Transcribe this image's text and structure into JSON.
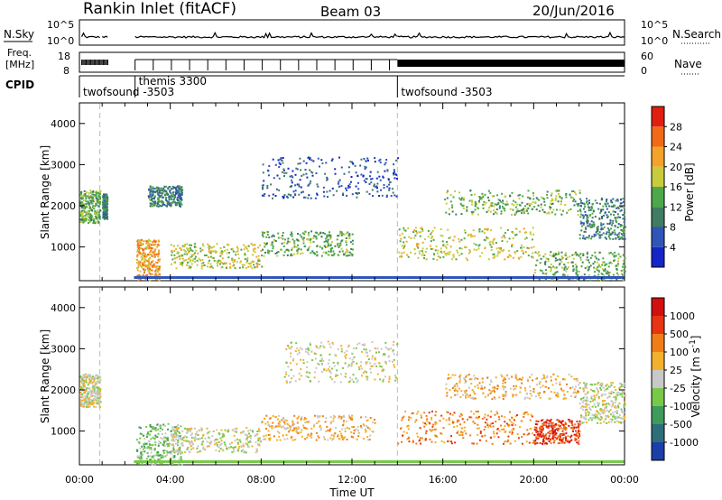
{
  "header": {
    "station": "Rankin Inlet (fitACF)",
    "beam": "Beam 03",
    "date": "20/Jun/2016"
  },
  "noise_panel": {
    "left_label": "N.Sky",
    "left_ticks": [
      "10^5",
      "10^0"
    ],
    "right_label": "N.Search",
    "right_ticks": [
      "10^5",
      "10^0"
    ]
  },
  "freq_panel": {
    "left_label_line1": "Freq.",
    "left_label_line2": "[MHz]",
    "left_ticks": [
      "18",
      "8"
    ],
    "right_label": "Nave",
    "right_ticks": [
      "60",
      "0"
    ]
  },
  "cpid": {
    "label": "CPID",
    "segments": [
      {
        "start_hour": 0.0,
        "name": "twofsound -3503",
        "row": 2
      },
      {
        "start_hour": 2.45,
        "name": "themis 3300",
        "row": 1
      },
      {
        "start_hour": 14.0,
        "name": "twofsound -3503",
        "row": 2
      }
    ]
  },
  "chart_data": [
    {
      "type": "heatmap",
      "title": "Power",
      "ylabel": "Slant Range [km]",
      "xlabel": "Time UT",
      "xlim": [
        0,
        24
      ],
      "ylim": [
        180,
        4500
      ],
      "y_ticks": [
        "1000",
        "2000",
        "3000",
        "4000"
      ],
      "x_ticks": [
        "00:00",
        "04:00",
        "08:00",
        "12:00",
        "16:00",
        "20:00",
        "00:00"
      ],
      "colorbar": {
        "label": "Power [dB]",
        "ticks": [
          "4",
          "8",
          "12",
          "16",
          "20",
          "24",
          "28"
        ],
        "colors": [
          "#1426c8",
          "#2f55b6",
          "#3f7c63",
          "#4ea84a",
          "#c7cb3c",
          "#f3a32a",
          "#f26a17",
          "#e11f10"
        ]
      },
      "scatter_regions": [
        {
          "x": [
            0.0,
            0.9
          ],
          "y": [
            1600,
            2400
          ],
          "level": 3
        },
        {
          "x": [
            1.0,
            1.2
          ],
          "y": [
            1700,
            2300
          ],
          "level": 2
        },
        {
          "x": [
            2.5,
            3.5
          ],
          "y": [
            200,
            1200
          ],
          "level": 5
        },
        {
          "x": [
            3.0,
            4.5
          ],
          "y": [
            2000,
            2500
          ],
          "level": 2
        },
        {
          "x": [
            4.0,
            8.0
          ],
          "y": [
            500,
            1100
          ],
          "level": 4
        },
        {
          "x": [
            8.0,
            12.0
          ],
          "y": [
            800,
            1400
          ],
          "level": 3
        },
        {
          "x": [
            8.0,
            14.0
          ],
          "y": [
            2200,
            3200
          ],
          "level": 1
        },
        {
          "x": [
            14.0,
            20.0
          ],
          "y": [
            700,
            1500
          ],
          "level": 4
        },
        {
          "x": [
            16.0,
            22.0
          ],
          "y": [
            1800,
            2400
          ],
          "level": 3
        },
        {
          "x": [
            20.0,
            24.0
          ],
          "y": [
            200,
            900
          ],
          "level": 3
        },
        {
          "x": [
            22.0,
            24.0
          ],
          "y": [
            1200,
            2200
          ],
          "level": 2
        }
      ]
    },
    {
      "type": "heatmap",
      "title": "Velocity",
      "ylabel": "Slant Range [km]",
      "xlabel": "Time UT",
      "xlim": [
        0,
        24
      ],
      "ylim": [
        180,
        4500
      ],
      "y_ticks": [
        "1000",
        "2000",
        "3000",
        "4000"
      ],
      "x_ticks": [
        "00:00",
        "04:00",
        "08:00",
        "12:00",
        "16:00",
        "20:00",
        "00:00"
      ],
      "colorbar": {
        "label": "Velocity [m s^-1]",
        "ticks": [
          "1000",
          "500",
          "100",
          "25",
          "-25",
          "-100",
          "-500",
          "-1000"
        ],
        "colors": [
          "#1a3fa8",
          "#2e6e7a",
          "#3f9b5a",
          "#78c84a",
          "#c8c8c8",
          "#f3b02c",
          "#f07d18",
          "#e83412",
          "#d20f0f"
        ]
      },
      "scatter_regions": [
        {
          "x": [
            0.0,
            0.9
          ],
          "y": [
            1600,
            2400
          ],
          "level": 4
        },
        {
          "x": [
            2.5,
            4.5
          ],
          "y": [
            200,
            1200
          ],
          "level": 3
        },
        {
          "x": [
            4.0,
            8.0
          ],
          "y": [
            500,
            1100
          ],
          "level": 4
        },
        {
          "x": [
            8.0,
            13.0
          ],
          "y": [
            800,
            1400
          ],
          "level": 5
        },
        {
          "x": [
            9.0,
            14.0
          ],
          "y": [
            2200,
            3200
          ],
          "level": 4
        },
        {
          "x": [
            14.0,
            20.0
          ],
          "y": [
            700,
            1500
          ],
          "level": 6
        },
        {
          "x": [
            16.0,
            22.0
          ],
          "y": [
            1800,
            2400
          ],
          "level": 5
        },
        {
          "x": [
            20.0,
            22.0
          ],
          "y": [
            700,
            1300
          ],
          "level": 7
        },
        {
          "x": [
            22.0,
            24.0
          ],
          "y": [
            1200,
            2200
          ],
          "level": 4
        }
      ]
    }
  ]
}
